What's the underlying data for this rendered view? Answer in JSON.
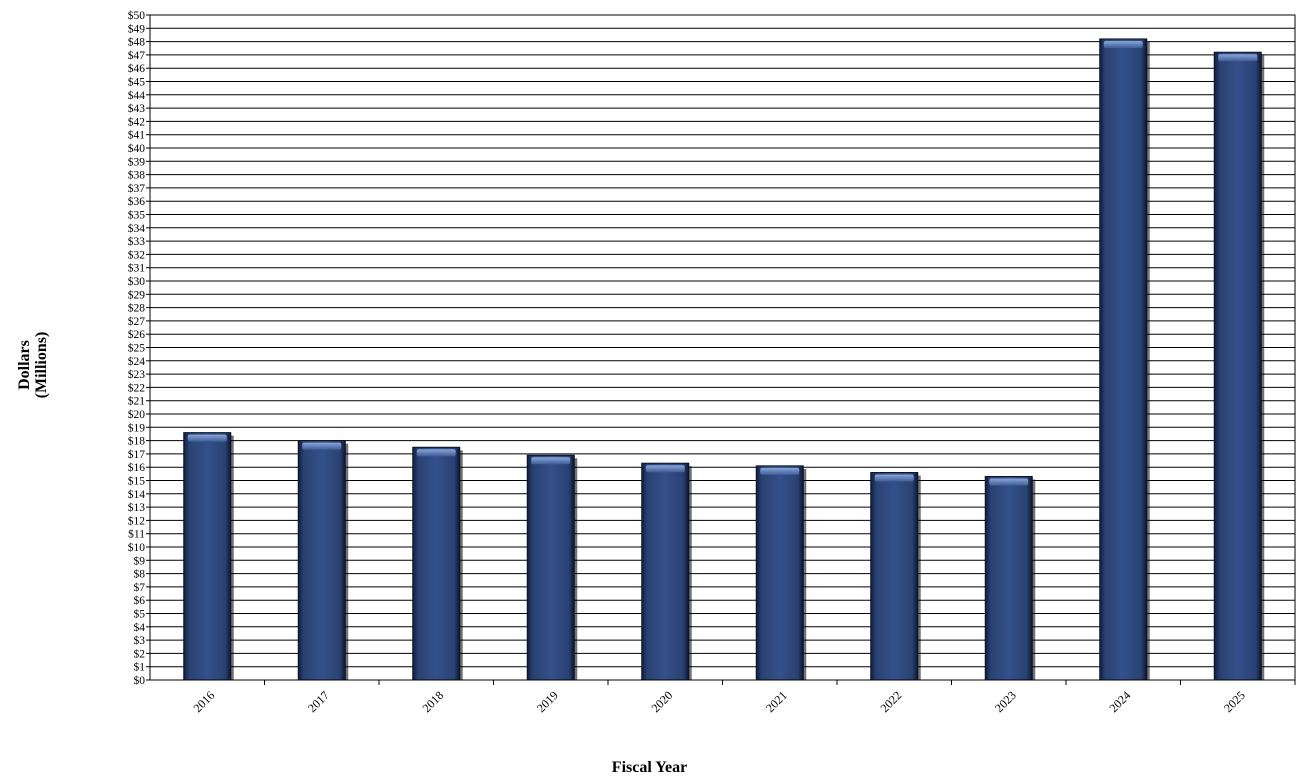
{
  "chart_data": {
    "type": "bar",
    "title": "",
    "xlabel": "Fiscal Year",
    "ylabel_lines": [
      "Dollars",
      "(Millions)"
    ],
    "categories": [
      "2016",
      "2017",
      "2018",
      "2019",
      "2020",
      "2021",
      "2022",
      "2023",
      "2024",
      "2025"
    ],
    "values": [
      18.6,
      18.0,
      17.5,
      16.9,
      16.3,
      16.1,
      15.6,
      15.3,
      48.2,
      47.2
    ],
    "ylim": [
      0,
      50
    ],
    "ytick_step": 1,
    "ytick_prefix": "$",
    "grid": true,
    "legend": "none",
    "colors": {
      "bar": "#2b4373",
      "bar_dark": "#0f1d3d",
      "bar_light": "#6f8cc4",
      "grid": "#000000"
    }
  }
}
